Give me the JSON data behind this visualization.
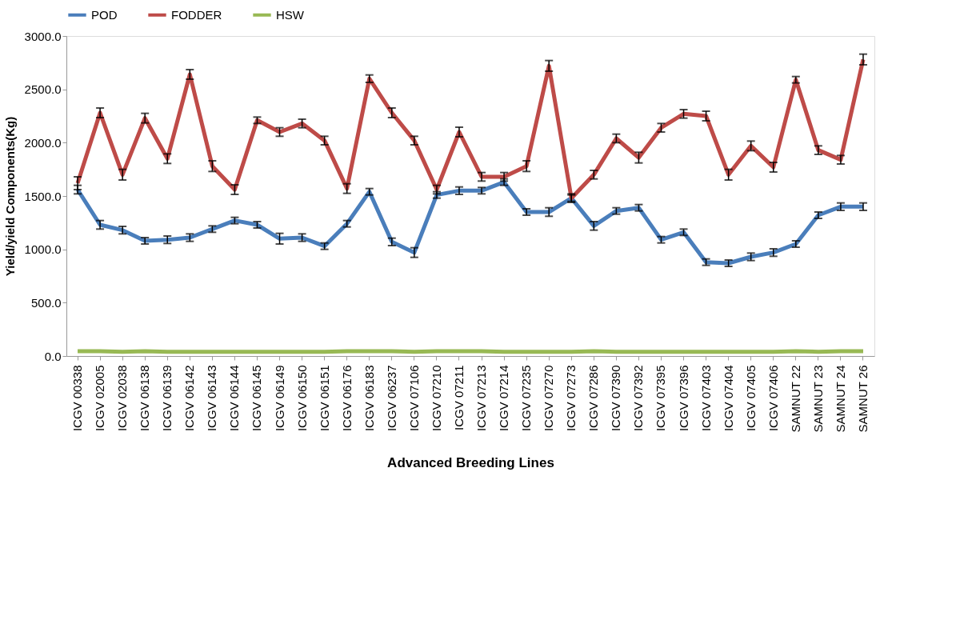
{
  "chart_data": {
    "type": "line",
    "xlabel": "Advanced Breeding Lines",
    "ylabel": "Yield/yield Components(Kg)",
    "categories": [
      "ICGV 00338",
      "ICGV 02005",
      "ICGV 02038",
      "ICGV 06138",
      "ICGV 06139",
      "ICGV 06142",
      "ICGV 06143",
      "ICGV 06144",
      "ICGV 06145",
      "ICGV 06149",
      "ICGV 06150",
      "ICGV 06151",
      "ICGV 06176",
      "ICGV 06183",
      "ICGV 06237",
      "ICGV 07106",
      "ICGV 07210",
      "ICGV 07211",
      "ICGV 07213",
      "ICGV 07214",
      "ICGV 07235",
      "ICGV 07270",
      "ICGV 07273",
      "ICGV 07286",
      "ICGV 07390",
      "ICGV 07392",
      "ICGV 07395",
      "ICGV 07396",
      "ICGV 07403",
      "ICGV 07404",
      "ICGV 07405",
      "ICGV 07406",
      "SAMNUT 22",
      "SAMNUT 23",
      "SAMNUT 24",
      "SAMNUT 26"
    ],
    "series": [
      {
        "name": "POD",
        "color": "#4a7ebb",
        "values": [
          1560,
          1230,
          1180,
          1080,
          1090,
          1110,
          1190,
          1270,
          1230,
          1100,
          1110,
          1030,
          1240,
          1540,
          1070,
          970,
          1510,
          1550,
          1550,
          1630,
          1350,
          1350,
          1480,
          1220,
          1360,
          1390,
          1090,
          1160,
          880,
          870,
          930,
          970,
          1050,
          1320,
          1400,
          1400
        ],
        "errors": [
          40,
          40,
          35,
          30,
          35,
          35,
          30,
          30,
          30,
          50,
          35,
          30,
          30,
          30,
          35,
          45,
          30,
          35,
          30,
          30,
          30,
          40,
          30,
          40,
          30,
          30,
          30,
          30,
          30,
          30,
          35,
          35,
          30,
          30,
          35,
          35
        ]
      },
      {
        "name": "FODDER",
        "color": "#be4b48",
        "values": [
          1620,
          2280,
          1700,
          2230,
          1850,
          2640,
          1780,
          1560,
          2210,
          2100,
          2180,
          2020,
          1570,
          2600,
          2280,
          2020,
          1560,
          2100,
          1680,
          1680,
          1780,
          2720,
          1480,
          1700,
          2040,
          1860,
          2140,
          2270,
          2250,
          1700,
          1970,
          1770,
          2590,
          1930,
          1840,
          2780
        ],
        "errors": [
          60,
          45,
          50,
          45,
          45,
          45,
          50,
          45,
          30,
          40,
          40,
          40,
          45,
          35,
          45,
          40,
          40,
          45,
          40,
          40,
          50,
          50,
          40,
          40,
          40,
          50,
          40,
          40,
          45,
          50,
          45,
          45,
          30,
          40,
          40,
          50
        ]
      },
      {
        "name": "HSW",
        "color": "#98b954",
        "values": [
          45,
          45,
          40,
          45,
          40,
          40,
          40,
          40,
          40,
          40,
          40,
          40,
          45,
          45,
          45,
          40,
          45,
          45,
          45,
          40,
          40,
          40,
          40,
          45,
          40,
          40,
          40,
          40,
          40,
          40,
          40,
          40,
          45,
          40,
          45,
          45
        ]
      }
    ],
    "ylim": [
      0,
      3000
    ],
    "yticks": [
      {
        "value": 0,
        "label": "0.0"
      },
      {
        "value": 500,
        "label": "500.0"
      },
      {
        "value": 1000,
        "label": "1000.0"
      },
      {
        "value": 1500,
        "label": "1500.0"
      },
      {
        "value": 2000,
        "label": "2000.0"
      },
      {
        "value": 2500,
        "label": "2500.0"
      },
      {
        "value": 3000,
        "label": "3000.0"
      }
    ],
    "grid": false,
    "legend": "top",
    "marker": "none",
    "line_style": "solid"
  }
}
